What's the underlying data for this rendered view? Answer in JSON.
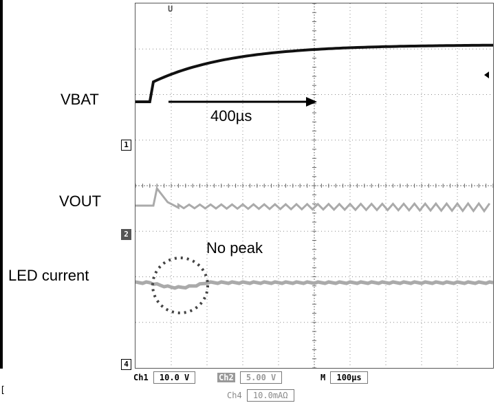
{
  "labels": {
    "vbat": "VBAT",
    "vout": "VOUT",
    "led_current": "LED current"
  },
  "annotations": {
    "time_span": "400µs",
    "no_peak": "No peak"
  },
  "channel_markers": {
    "ch1": "1",
    "ch2": "2",
    "ch4": "4"
  },
  "trigger_marker": "U",
  "readouts": {
    "ch1_label": "Ch1",
    "ch1_scale": "10.0 V",
    "ch2_label": "Ch2",
    "ch2_scale": "5.00 V",
    "ch4_label": "Ch4",
    "ch4_scale": "10.0mAΩ",
    "timebase_label": "M",
    "timebase_value": "100µs"
  },
  "colors": {
    "vbat_trace": "#111111",
    "vout_trace": "#aaaaaa",
    "led_trace": "#aaaaaa",
    "grid": "#888888",
    "annotation_circle": "#444444"
  },
  "chart_data": {
    "type": "line",
    "series": [
      {
        "name": "VBAT",
        "x": [
          0,
          0.4,
          0.5,
          1,
          2,
          3,
          5,
          10
        ],
        "y": [
          0,
          0,
          0.35,
          0.55,
          0.75,
          0.85,
          0.93,
          1.0
        ]
      },
      {
        "name": "VOUT",
        "x": [
          0,
          0.5,
          0.6,
          0.9,
          1.2,
          10
        ],
        "y": [
          0,
          0,
          0.25,
          0.05,
          0,
          0
        ]
      },
      {
        "name": "LED current",
        "x": [
          0,
          0.5,
          1.0,
          2.0,
          10
        ],
        "y": [
          0,
          -0.05,
          -0.08,
          0,
          0
        ]
      }
    ]
  }
}
